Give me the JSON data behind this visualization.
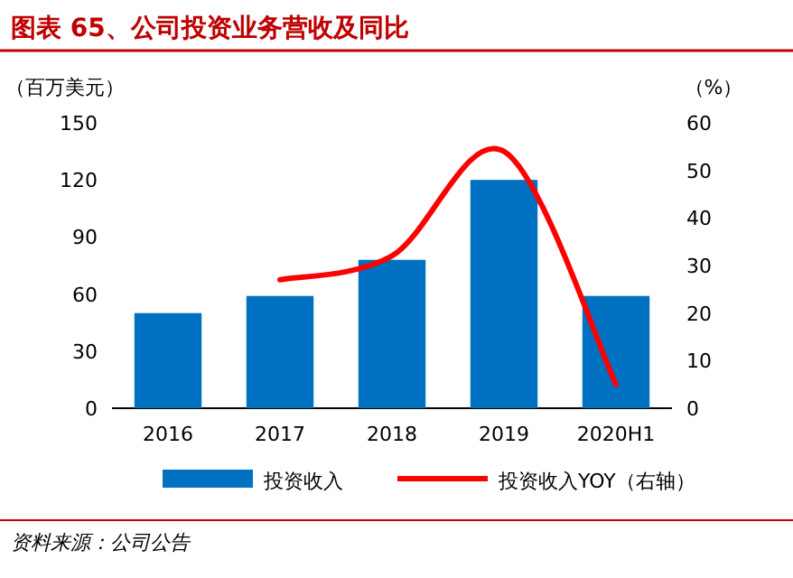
{
  "chart_data": {
    "type": "bar",
    "title": "图表 65、公司投资业务营收及同比",
    "ylabel": "（百万美元）",
    "y2label": "（%）",
    "categories": [
      "2016",
      "2017",
      "2018",
      "2019",
      "2020H1"
    ],
    "series": [
      {
        "name": "投资收入",
        "color": "#0070c0",
        "values": [
          50,
          59,
          78,
          120,
          59
        ]
      },
      {
        "name": "投资收入YOY（右轴）",
        "type": "line",
        "axis": "y2",
        "color": "#ff0000",
        "values": [
          null,
          27,
          32,
          54,
          5
        ]
      }
    ],
    "ylim": [
      0,
      150
    ],
    "yticks": [
      0,
      30,
      60,
      90,
      120,
      150
    ],
    "y2lim": [
      0,
      60
    ],
    "y2ticks": [
      0,
      10,
      20,
      30,
      40,
      50,
      60
    ],
    "grid": false,
    "legend": "bottom",
    "annotations": [
      "资料来源：公司公告"
    ]
  }
}
